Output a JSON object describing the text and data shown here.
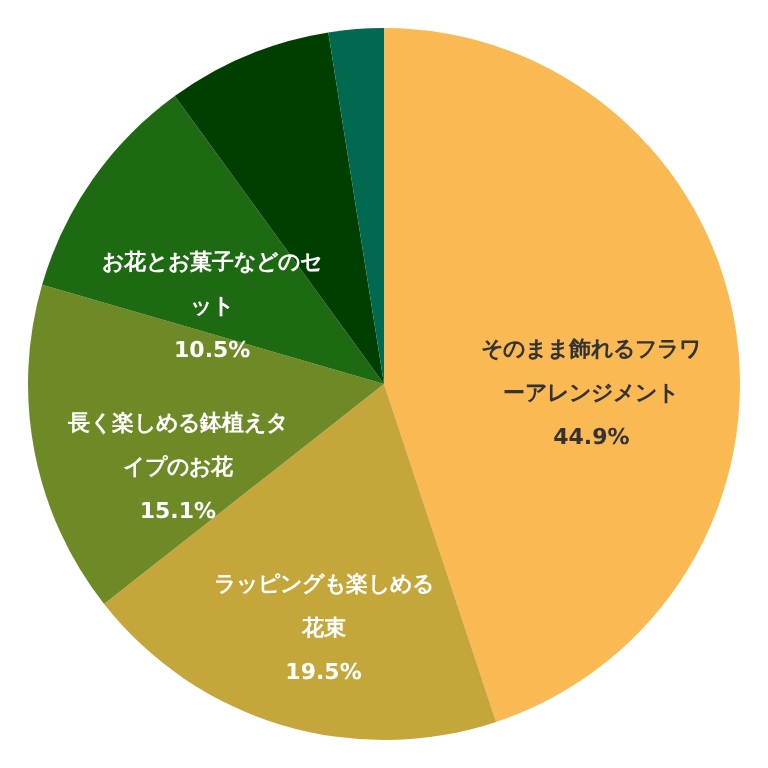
{
  "chart_data": {
    "type": "pie",
    "categories": [
      "そのまま飾れるフラワーアレンジメント",
      "ラッピングも楽しめる花束",
      "長く楽しめる鉢植えタイプのお花",
      "お花とお菓子などのセット",
      null,
      null
    ],
    "values": [
      44.9,
      19.5,
      15.1,
      10.5,
      7.5,
      2.5
    ],
    "value_labels": [
      "44.9%",
      "19.5%",
      "15.1%",
      "10.5%",
      null,
      null
    ],
    "colors": [
      "#fbb954",
      "#c4a63a",
      "#6e8a26",
      "#1e6a12",
      "#003f00",
      "#00694f"
    ]
  }
}
